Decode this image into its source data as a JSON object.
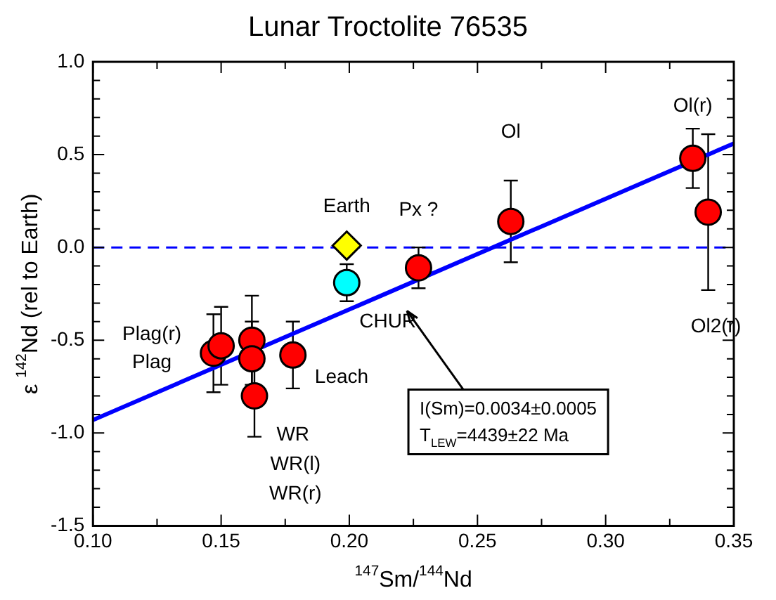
{
  "chart_data": {
    "type": "scatter",
    "title": "Lunar Troctolite 76535",
    "xlabel": "$^{147}$Sm/$^{144}$Nd",
    "ylabel": "ε $^{142}$Nd (rel to Earth)",
    "xlim": [
      0.1,
      0.35
    ],
    "ylim": [
      -1.5,
      1.0
    ],
    "xticks": [
      {
        "value": 0.1,
        "label": "0.10"
      },
      {
        "value": 0.125,
        "label": null
      },
      {
        "value": 0.15,
        "label": "0.15"
      },
      {
        "value": 0.175,
        "label": null
      },
      {
        "value": 0.2,
        "label": "0.20"
      },
      {
        "value": 0.225,
        "label": null
      },
      {
        "value": 0.25,
        "label": "0.25"
      },
      {
        "value": 0.275,
        "label": null
      },
      {
        "value": 0.3,
        "label": "0.30"
      },
      {
        "value": 0.325,
        "label": null
      },
      {
        "value": 0.35,
        "label": "0.35"
      }
    ],
    "yticks": [
      {
        "value": -1.5,
        "label": "-1.5"
      },
      {
        "value": -1.4,
        "label": null
      },
      {
        "value": -1.3,
        "label": null
      },
      {
        "value": -1.2,
        "label": null
      },
      {
        "value": -1.1,
        "label": null
      },
      {
        "value": -1.0,
        "label": "-1.0"
      },
      {
        "value": -0.9,
        "label": null
      },
      {
        "value": -0.8,
        "label": null
      },
      {
        "value": -0.7,
        "label": null
      },
      {
        "value": -0.6,
        "label": null
      },
      {
        "value": -0.5,
        "label": "-0.5"
      },
      {
        "value": -0.4,
        "label": null
      },
      {
        "value": -0.3,
        "label": null
      },
      {
        "value": -0.2,
        "label": null
      },
      {
        "value": -0.1,
        "label": null
      },
      {
        "value": 0.0,
        "label": "0.0"
      },
      {
        "value": 0.1,
        "label": null
      },
      {
        "value": 0.2,
        "label": null
      },
      {
        "value": 0.3,
        "label": null
      },
      {
        "value": 0.4,
        "label": null
      },
      {
        "value": 0.5,
        "label": "0.5"
      },
      {
        "value": 0.6,
        "label": null
      },
      {
        "value": 0.7,
        "label": null
      },
      {
        "value": 0.8,
        "label": null
      },
      {
        "value": 0.9,
        "label": null
      },
      {
        "value": 1.0,
        "label": "1.0"
      }
    ],
    "grid": false,
    "legend": false,
    "series": [
      {
        "type": "line",
        "color": "#0000ff",
        "x": [
          0.1,
          0.35
        ],
        "values": [
          -0.93,
          0.56
        ],
        "marker": "none",
        "line_style": "solid"
      },
      {
        "type": "scatter",
        "color": "#ff0000",
        "marker": "circle",
        "x": [
          0.147,
          0.15,
          0.162,
          0.162,
          0.163,
          0.178,
          0.227,
          0.263,
          0.334,
          0.34
        ],
        "values": [
          -0.57,
          -0.53,
          -0.5,
          -0.6,
          -0.8,
          -0.58,
          -0.11,
          0.14,
          0.48,
          0.19
        ],
        "errors": [
          0.21,
          0.21,
          0.24,
          0.2,
          0.22,
          0.18,
          0.11,
          0.22,
          0.16,
          0.42
        ]
      },
      {
        "type": "scatter",
        "color": "#00ffff",
        "marker": "circle",
        "x": [
          0.199
        ],
        "values": [
          -0.19
        ],
        "errors": [
          0.1
        ]
      },
      {
        "type": "scatter",
        "color": "#ffff00",
        "marker": "diamond",
        "x": [
          0.199
        ],
        "values": [
          0.01
        ]
      }
    ],
    "ref_lines": [
      {
        "axis": "y",
        "value": 0,
        "color": "#0000ff",
        "line_style": "dashed"
      }
    ],
    "annotations": [
      "Earth",
      "Px ?",
      "CHUR",
      "Ol",
      "Ol(r)",
      "Ol2(r)",
      "Plag(r)",
      "Plag",
      "Leach",
      "WR",
      "WR(l)",
      "WR(r)",
      "I(Sm)=0.0034±0.0005\nT$_{LEW}$=4439±22 Ma"
    ]
  }
}
